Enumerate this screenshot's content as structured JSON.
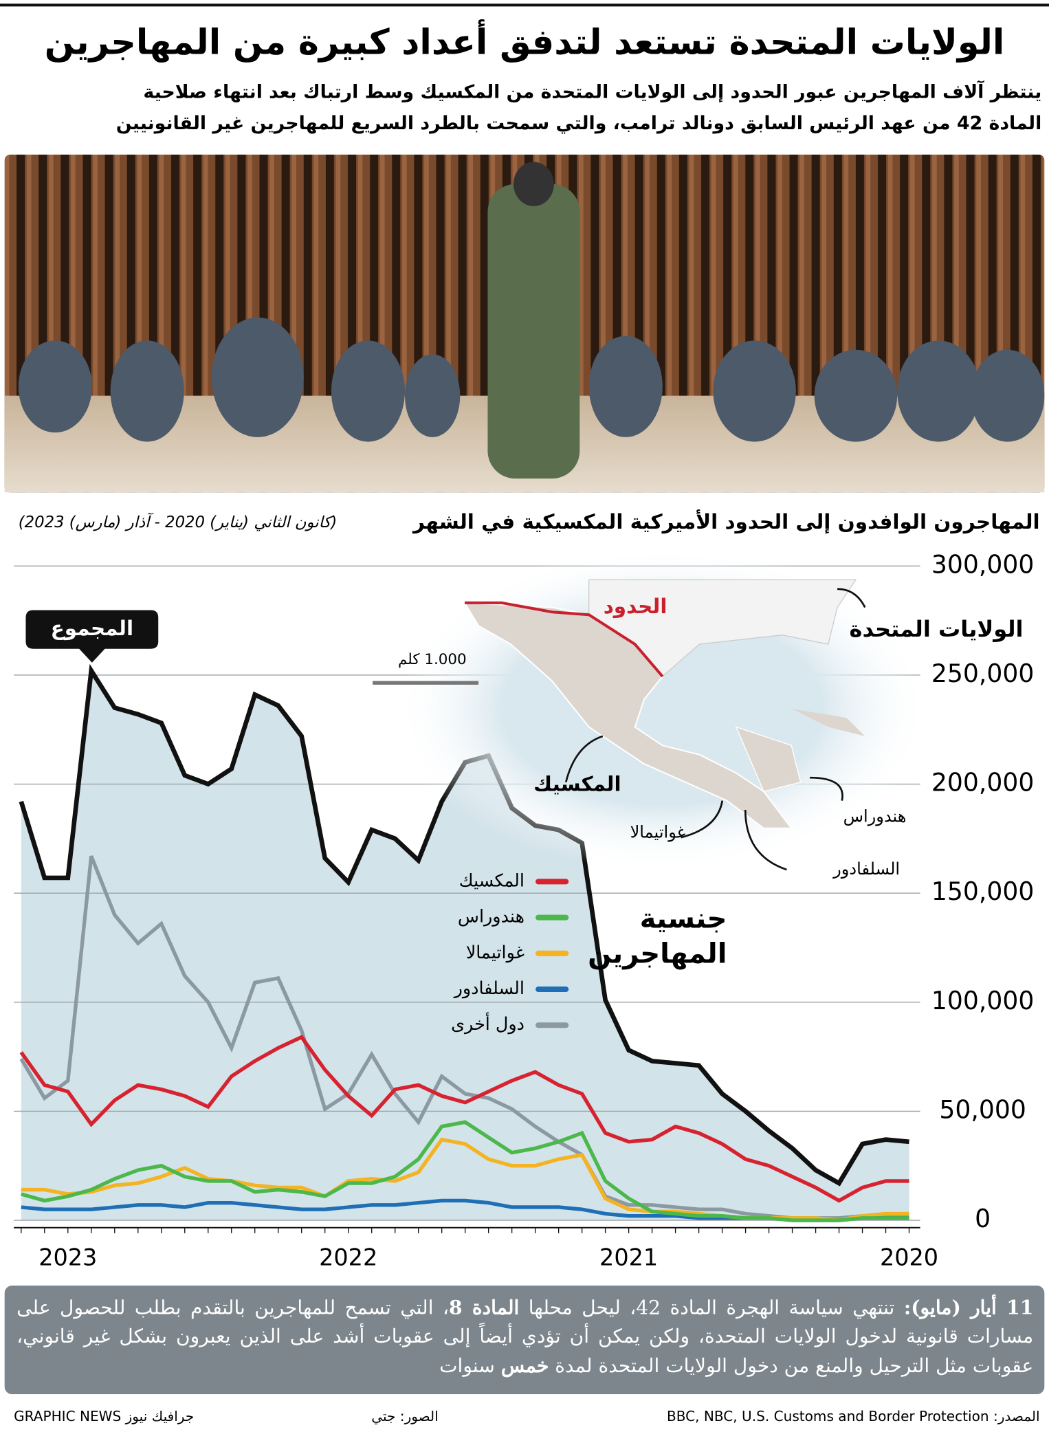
{
  "header": {
    "title": "الولايات المتحدة تستعد لتدفق أعداد كبيرة من المهاجرين",
    "subtitle_lines": [
      "ينتظر آلاف المهاجرين عبور الحدود إلى الولايات المتحدة من المكسيك وسط ارتباك بعد انتهاء صلاحية",
      "المادة 42 من عهد الرئيس السابق دونالد ترامب، والتي سمحت بالطرد السريع للمهاجرين غير القانونيين"
    ]
  },
  "chart_data": {
    "type": "line",
    "title": "المهاجرون الوافدون إلى الحدود الأميركية المكسيكية في الشهر",
    "subtitle": "(كانون الثاني (يناير) 2020 - آذار (مارس) 2023)",
    "total_label": "المجموع",
    "legend_title": "جنسية المهاجرين",
    "x_reversed": true,
    "grid": true,
    "area_color": "#d3e3ea",
    "categories": [
      "2020",
      null,
      null,
      null,
      null,
      null,
      null,
      null,
      null,
      null,
      null,
      null,
      "2021",
      null,
      null,
      null,
      null,
      null,
      null,
      null,
      null,
      null,
      null,
      null,
      "2022",
      null,
      null,
      null,
      null,
      null,
      null,
      null,
      null,
      null,
      null,
      null,
      "2023",
      null,
      null
    ],
    "ylim": [
      0,
      300000
    ],
    "yticks": [
      0,
      {
        "value": 50000,
        "label": "50,000"
      },
      {
        "value": 100000,
        "label": "100,000"
      },
      {
        "value": 150000,
        "label": "150,000"
      },
      {
        "value": 200000,
        "label": "200,000"
      },
      {
        "value": 250000,
        "label": "250,000"
      },
      {
        "value": 300000,
        "label": "300,000"
      }
    ],
    "total": {
      "color": "#111111",
      "values": [
        36000,
        37000,
        35000,
        17000,
        23000,
        33000,
        41000,
        50000,
        58000,
        71000,
        72000,
        73000,
        78000,
        101000,
        173000,
        179000,
        181000,
        189000,
        213000,
        210000,
        192000,
        165000,
        175000,
        179000,
        155000,
        166000,
        222000,
        236000,
        241000,
        207000,
        200000,
        204000,
        228000,
        232000,
        235000,
        252000,
        157000,
        157000,
        192000
      ]
    },
    "series": [
      {
        "name": "المكسيك",
        "color": "#d7222f",
        "values": [
          18000,
          18000,
          15000,
          9000,
          15000,
          20000,
          25000,
          28000,
          35000,
          40000,
          43000,
          37000,
          36000,
          40000,
          58000,
          62000,
          68000,
          64000,
          59000,
          54000,
          57000,
          62000,
          60000,
          48000,
          57000,
          69000,
          84000,
          79000,
          73000,
          66000,
          52000,
          57000,
          60000,
          62000,
          55000,
          44000,
          59000,
          62000,
          77000
        ]
      },
      {
        "name": "هندوراس",
        "color": "#4cb84b",
        "values": [
          1000,
          1000,
          1000,
          0,
          0,
          0,
          1000,
          1000,
          2000,
          2000,
          3000,
          4000,
          10000,
          18000,
          40000,
          36000,
          33000,
          31000,
          38000,
          45000,
          43000,
          28000,
          20000,
          17000,
          17000,
          11000,
          13000,
          14000,
          13000,
          18000,
          18000,
          20000,
          25000,
          23000,
          19000,
          14000,
          11000,
          9000,
          12000
        ]
      },
      {
        "name": "غواتيمالا",
        "color": "#f4b321",
        "values": [
          3000,
          3000,
          2000,
          0,
          1000,
          1000,
          1000,
          1000,
          2000,
          3000,
          4000,
          4000,
          5000,
          10000,
          30000,
          28000,
          25000,
          25000,
          28000,
          35000,
          37000,
          22000,
          18000,
          19000,
          18000,
          11000,
          15000,
          15000,
          16000,
          18000,
          19000,
          24000,
          20000,
          17000,
          16000,
          13000,
          12000,
          14000,
          14000
        ]
      },
      {
        "name": "السلفادور",
        "color": "#1f6fb6",
        "values": [
          1000,
          1000,
          1000,
          0,
          0,
          0,
          1000,
          1000,
          1000,
          1000,
          2000,
          2000,
          2000,
          3000,
          5000,
          6000,
          6000,
          6000,
          8000,
          9000,
          9000,
          8000,
          7000,
          7000,
          6000,
          5000,
          5000,
          6000,
          7000,
          8000,
          8000,
          6000,
          7000,
          7000,
          6000,
          5000,
          5000,
          5000,
          6000
        ]
      },
      {
        "name": "دول أخرى",
        "color": "#8c99a2",
        "values": [
          2000,
          2000,
          2000,
          1000,
          1000,
          1000,
          2000,
          3000,
          5000,
          5000,
          6000,
          7000,
          7000,
          11000,
          30000,
          36000,
          43000,
          51000,
          56000,
          58000,
          66000,
          45000,
          58000,
          76000,
          58000,
          51000,
          87000,
          111000,
          109000,
          79000,
          100000,
          112000,
          136000,
          127000,
          140000,
          167000,
          64000,
          56000,
          74000
        ]
      }
    ],
    "map": {
      "us": "الولايات المتحدة",
      "border": "الحدود",
      "mexico": "المكسيك",
      "guatemala": "غواتيمالا",
      "el_salvador": "السلفادور",
      "honduras": "هندوراس",
      "scale": "1.000 كلم"
    }
  },
  "note": {
    "date": "11 أيار (مايو):",
    "text1": " تنتهي سياسة الهجرة المادة 42، ليحل محلها ",
    "bold1": "المادة 8",
    "text2": "، التي تسمح للمهاجرين بالتقدم بطلب للحصول على مسارات قانونية لدخول الولايات المتحدة، ولكن يمكن أن تؤدي أيضاً إلى عقوبات أشد على الذين يعبرون بشكل غير قانوني، عقوبات مثل الترحيل والمنع من دخول الولايات المتحدة لمدة ",
    "bold2": "خمس",
    "text3": " سنوات"
  },
  "footer": {
    "source": "المصدر: BBC, NBC, U.S. Customs and Border Protection",
    "photos": "الصور: جتي",
    "brand": "GRAPHIC NEWS جرافيك نيوز"
  }
}
